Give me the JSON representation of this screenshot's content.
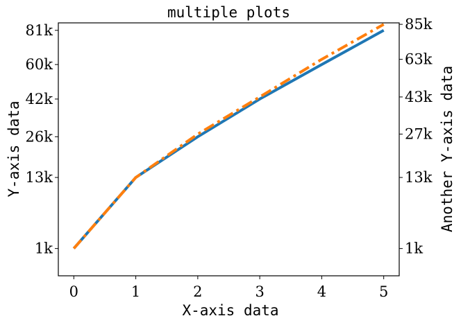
{
  "chart_data": {
    "type": "line",
    "title": "multiple plots",
    "xlabel": "X-axis data",
    "ylabel": "Y-axis data",
    "y2label": "Another Y-axis data",
    "x": [
      0,
      1,
      2,
      3,
      4,
      5
    ],
    "xticks": [
      "0",
      "1",
      "2",
      "3",
      "4",
      "5"
    ],
    "xlim": [
      -0.25,
      5.25
    ],
    "ylim": [
      0,
      86000
    ],
    "y2lim": [
      0,
      86000
    ],
    "yticks": [
      {
        "value": 1000,
        "label": "1k"
      },
      {
        "value": 13000,
        "label": "13k"
      },
      {
        "value": 26000,
        "label": "26k"
      },
      {
        "value": 42000,
        "label": "42k"
      },
      {
        "value": 60000,
        "label": "60k"
      },
      {
        "value": 81000,
        "label": "81k"
      }
    ],
    "y2ticks": [
      {
        "value": 1000,
        "label": "1k"
      },
      {
        "value": 13000,
        "label": "13k"
      },
      {
        "value": 27000,
        "label": "27k"
      },
      {
        "value": 43000,
        "label": "43k"
      },
      {
        "value": 63000,
        "label": "63k"
      },
      {
        "value": 85000,
        "label": "85k"
      }
    ],
    "y_scale": "sqrt",
    "grid": false,
    "series": [
      {
        "axis": "left",
        "color": "#1f77b4",
        "style": "solid",
        "values": [
          1000,
          13000,
          26000,
          42000,
          60000,
          81000
        ]
      },
      {
        "axis": "right",
        "color": "#ff7f0e",
        "style": "dashdot",
        "values": [
          1000,
          13000,
          27000,
          43000,
          63000,
          85000
        ]
      }
    ]
  }
}
